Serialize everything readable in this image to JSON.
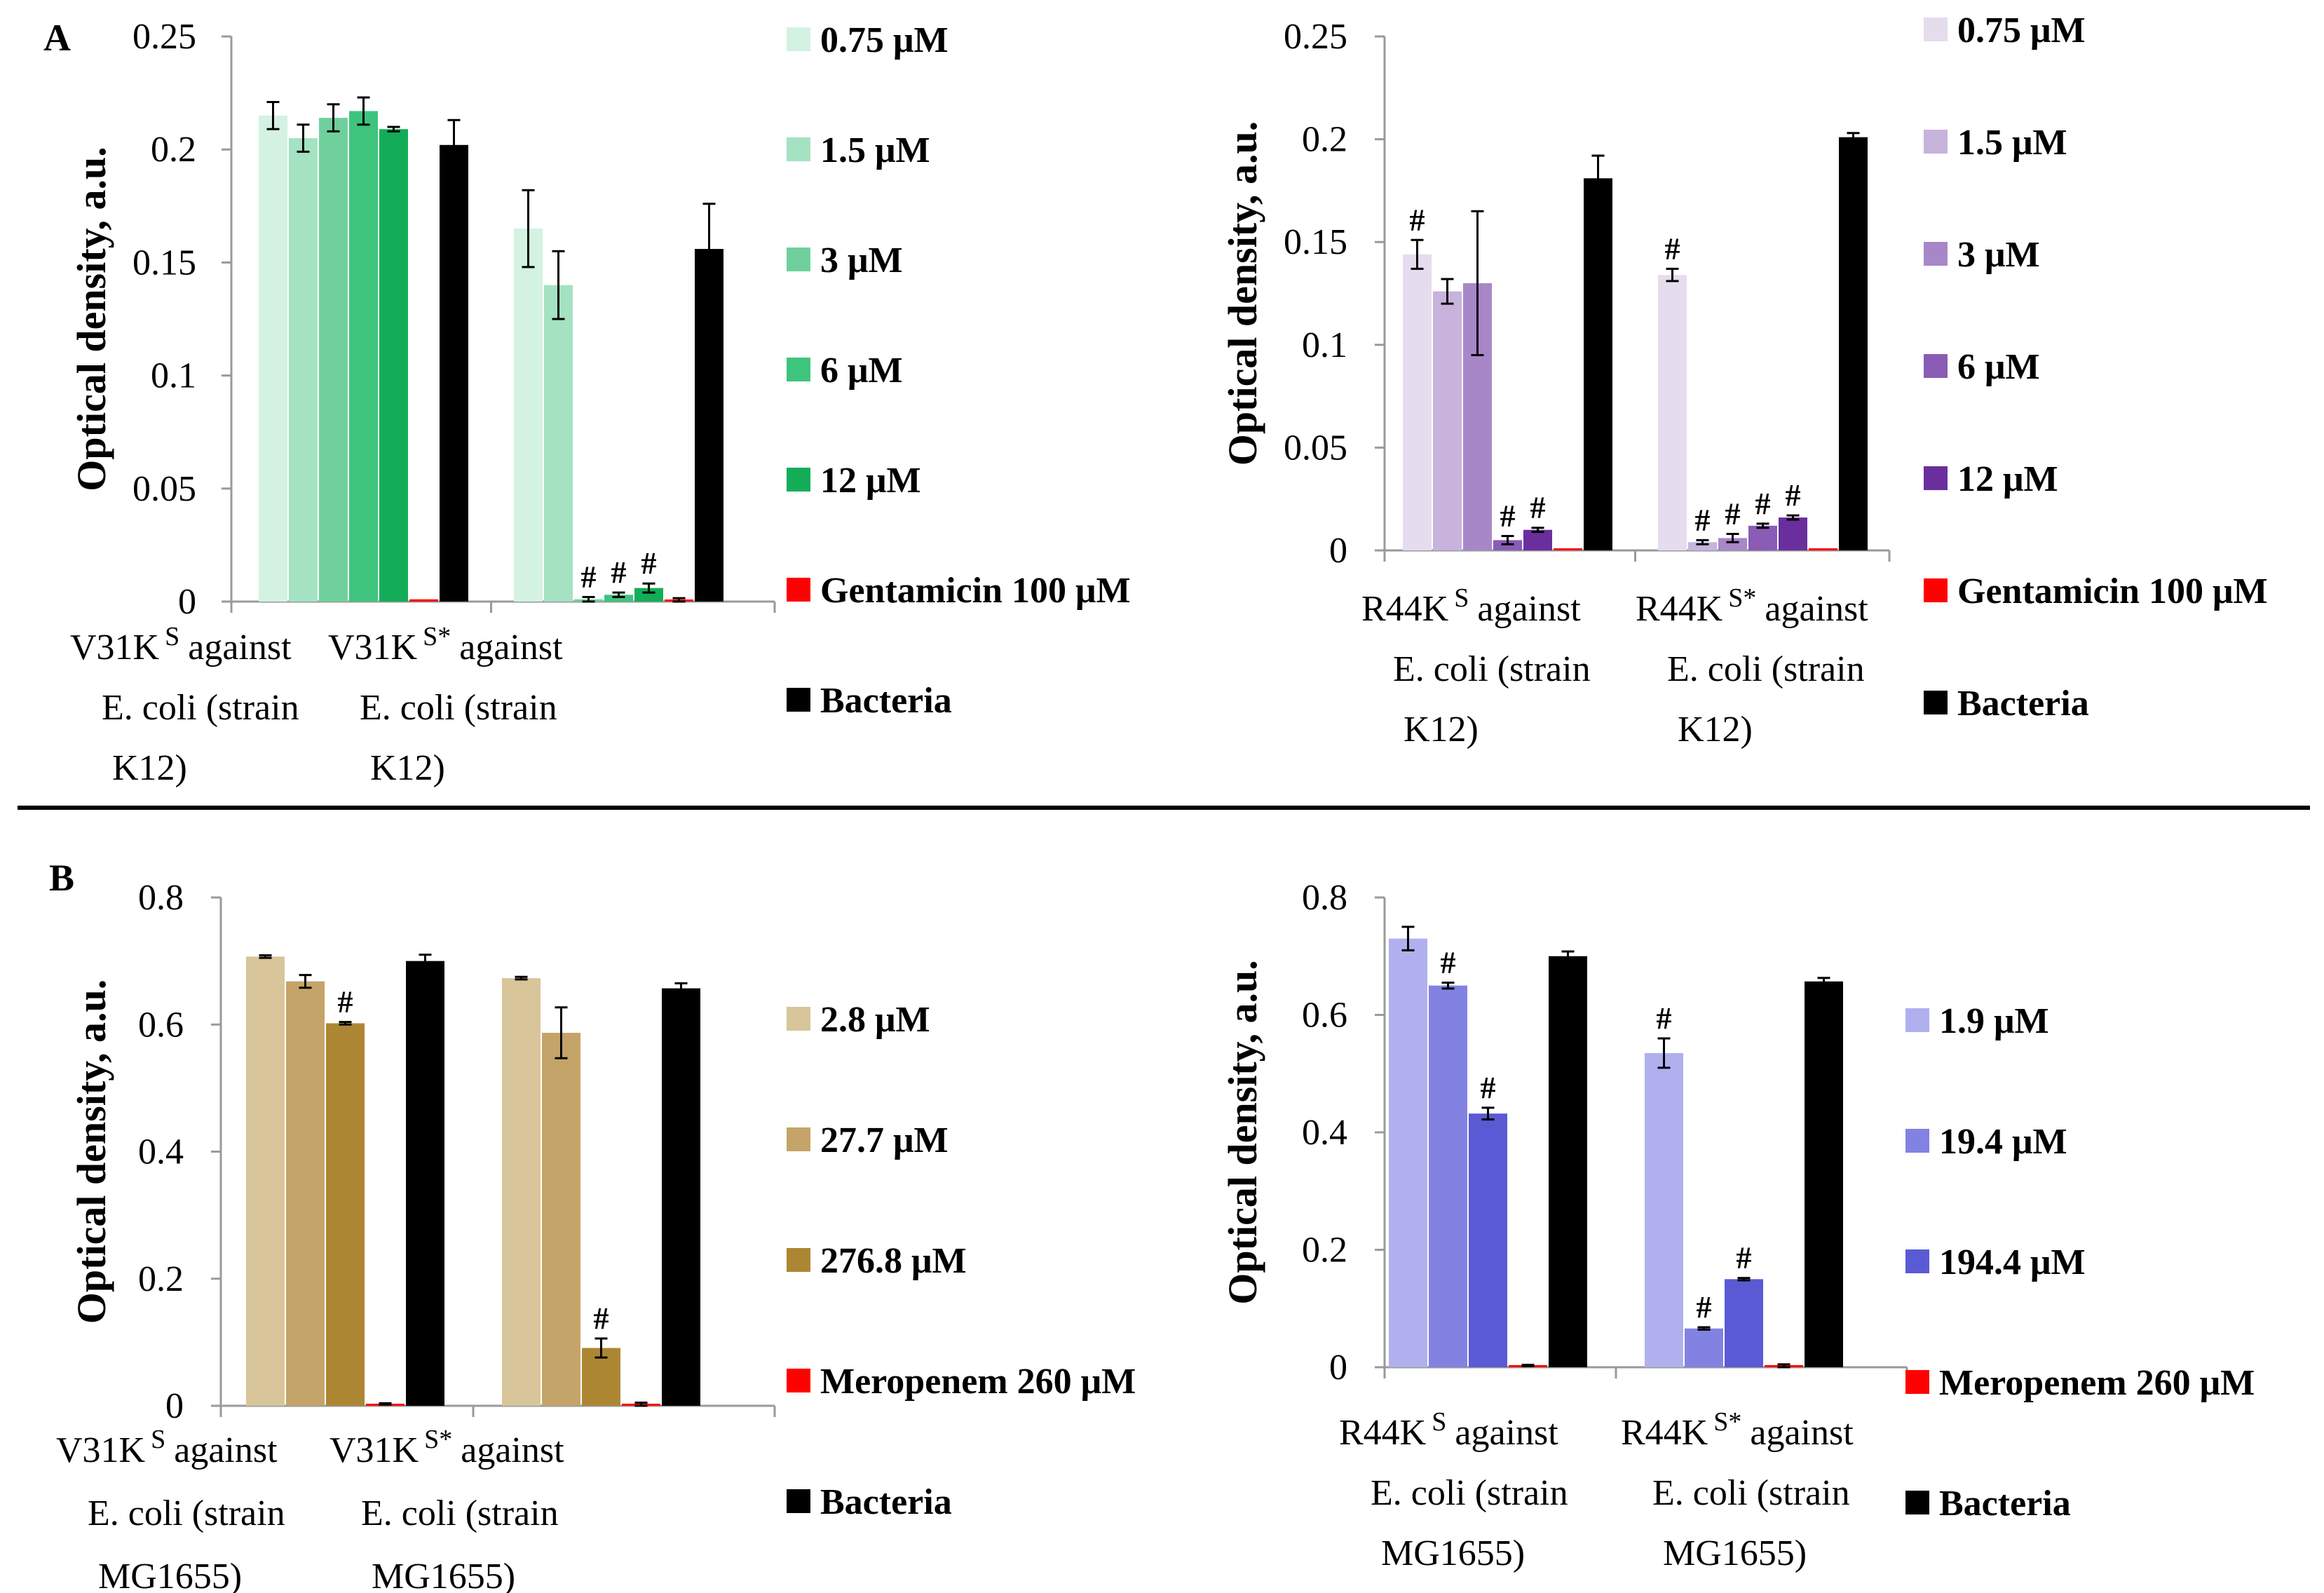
{
  "figure": {
    "panel_labels": [
      "A",
      "B"
    ],
    "hash_mark": "#"
  },
  "chart_data": [
    {
      "id": "A-left",
      "type": "bar",
      "ylabel": "Optical density, a.u.",
      "ylim": [
        0,
        0.25
      ],
      "yticks": [
        "0",
        "0.05",
        "0.1",
        "0.15",
        "0.2",
        "0.25"
      ],
      "groups": [
        {
          "label_lines": [
            "V31K^S against",
            "E. coli (strain",
            "K12)"
          ]
        },
        {
          "label_lines": [
            "V31K^S* against",
            "E. coli (strain",
            "K12)"
          ]
        }
      ],
      "series": [
        {
          "name": "0.75 μM",
          "color": "#d3f2e1",
          "values": [
            0.215,
            0.165
          ],
          "errors": [
            0.006,
            0.017
          ],
          "sig": [
            false,
            false
          ]
        },
        {
          "name": "1.5 μM",
          "color": "#a4e2c1",
          "values": [
            0.205,
            0.14
          ],
          "errors": [
            0.006,
            0.015
          ],
          "sig": [
            false,
            false
          ]
        },
        {
          "name": "3 μM",
          "color": "#6fd09d",
          "values": [
            0.214,
            0.001
          ],
          "errors": [
            0.006,
            0.001
          ],
          "sig": [
            false,
            true
          ]
        },
        {
          "name": "6 μM",
          "color": "#3ec47d",
          "values": [
            0.217,
            0.003
          ],
          "errors": [
            0.006,
            0.001
          ],
          "sig": [
            false,
            true
          ]
        },
        {
          "name": "12 μM",
          "color": "#14ad57",
          "values": [
            0.209,
            0.006
          ],
          "errors": [
            0.001,
            0.002
          ],
          "sig": [
            false,
            true
          ]
        },
        {
          "name": "Gentamicin 100 μM",
          "color": "#ff0000",
          "values": [
            0.001,
            0.0005
          ],
          "errors": [
            0,
            0.001
          ],
          "sig": [
            false,
            false
          ]
        },
        {
          "name": "Bacteria",
          "color": "#000000",
          "values": [
            0.202,
            0.156
          ],
          "errors": [
            0.011,
            0.02
          ],
          "sig": [
            false,
            false
          ]
        }
      ]
    },
    {
      "id": "A-right",
      "type": "bar",
      "ylabel": "Optical density, a.u.",
      "ylim": [
        0,
        0.25
      ],
      "yticks": [
        "0",
        "0.05",
        "0.1",
        "0.15",
        "0.2",
        "0.25"
      ],
      "groups": [
        {
          "label_lines": [
            "R44K^S against",
            "E. coli (strain",
            "K12)"
          ]
        },
        {
          "label_lines": [
            "R44K^S* against",
            "E. coli (strain",
            "K12)"
          ]
        }
      ],
      "series": [
        {
          "name": "0.75 μM",
          "color": "#e5dcee",
          "values": [
            0.144,
            0.134
          ],
          "errors": [
            0.007,
            0.003
          ],
          "sig": [
            true,
            true
          ]
        },
        {
          "name": "1.5 μM",
          "color": "#c7b3dc",
          "values": [
            0.126,
            0.004
          ],
          "errors": [
            0.006,
            0.001
          ],
          "sig": [
            false,
            true
          ]
        },
        {
          "name": "3 μM",
          "color": "#a887c9",
          "values": [
            0.13,
            0.006
          ],
          "errors": [
            0.035,
            0.002
          ],
          "sig": [
            false,
            true
          ]
        },
        {
          "name": "6 μM",
          "color": "#8a5cb5",
          "values": [
            0.005,
            0.012
          ],
          "errors": [
            0.002,
            0.001
          ],
          "sig": [
            true,
            true
          ]
        },
        {
          "name": "12 μM",
          "color": "#6a2f9c",
          "values": [
            0.01,
            0.016
          ],
          "errors": [
            0.001,
            0.001
          ],
          "sig": [
            true,
            true
          ]
        },
        {
          "name": "Gentamicin 100 μM",
          "color": "#ff0000",
          "values": [
            0.0005,
            0.0005
          ],
          "errors": [
            0,
            0
          ],
          "sig": [
            false,
            false
          ]
        },
        {
          "name": "Bacteria",
          "color": "#000000",
          "values": [
            0.181,
            0.201
          ],
          "errors": [
            0.011,
            0.002
          ],
          "sig": [
            false,
            false
          ]
        }
      ]
    },
    {
      "id": "B-left",
      "type": "bar",
      "ylabel": "Optical density, a.u.",
      "ylim": [
        0,
        0.8
      ],
      "yticks": [
        "0",
        "0.2",
        "0.4",
        "0.6",
        "0.8"
      ],
      "groups": [
        {
          "label_lines": [
            "V31K^S against",
            "E. coli (strain",
            "MG1655)"
          ]
        },
        {
          "label_lines": [
            "V31K^S* against",
            "E. coli (strain",
            "MG1655)"
          ]
        }
      ],
      "series": [
        {
          "name": "2.8 μM",
          "color": "#d8c59a",
          "values": [
            0.707,
            0.673
          ],
          "errors": [
            0.002,
            0.002
          ],
          "sig": [
            false,
            false
          ]
        },
        {
          "name": "27.7 μM",
          "color": "#c4a468",
          "values": [
            0.668,
            0.587
          ],
          "errors": [
            0.01,
            0.04
          ],
          "sig": [
            false,
            false
          ]
        },
        {
          "name": "276.8 μM",
          "color": "#ad8634",
          "values": [
            0.602,
            0.091
          ],
          "errors": [
            0.002,
            0.015
          ],
          "sig": [
            true,
            true
          ]
        },
        {
          "name": "Meropenem 260 μM",
          "color": "#ff0000",
          "values": [
            0.003,
            0.002
          ],
          "errors": [
            0.001,
            0.003
          ],
          "sig": [
            false,
            false
          ]
        },
        {
          "name": "Bacteria",
          "color": "#000000",
          "values": [
            0.7,
            0.657
          ],
          "errors": [
            0.01,
            0.008
          ],
          "sig": [
            false,
            false
          ]
        }
      ]
    },
    {
      "id": "B-right",
      "type": "bar",
      "ylabel": "Optical density, a.u.",
      "ylim": [
        0,
        0.8
      ],
      "yticks": [
        "0",
        "0.2",
        "0.4",
        "0.6",
        "0.8"
      ],
      "groups": [
        {
          "label_lines": [
            "R44K^S against",
            "E. coli (strain",
            "MG1655)"
          ]
        },
        {
          "label_lines": [
            "R44K^S* against",
            "E. coli (strain",
            "MG1655)"
          ]
        }
      ],
      "series": [
        {
          "name": "1.9 μM",
          "color": "#b0b0ee",
          "values": [
            0.73,
            0.535
          ],
          "errors": [
            0.02,
            0.025
          ],
          "sig": [
            false,
            true
          ]
        },
        {
          "name": "19.4 μM",
          "color": "#8282e2",
          "values": [
            0.65,
            0.066
          ],
          "errors": [
            0.005,
            0.002
          ],
          "sig": [
            true,
            true
          ]
        },
        {
          "name": "194.4 μM",
          "color": "#5a5ad5",
          "values": [
            0.432,
            0.15
          ],
          "errors": [
            0.01,
            0.002
          ],
          "sig": [
            true,
            true
          ]
        },
        {
          "name": "Meropenem 260 μM",
          "color": "#ff0000",
          "values": [
            0.003,
            0.002
          ],
          "errors": [
            0.001,
            0.003
          ],
          "sig": [
            false,
            false
          ]
        },
        {
          "name": "Bacteria",
          "color": "#000000",
          "values": [
            0.7,
            0.657
          ],
          "errors": [
            0.008,
            0.006
          ],
          "sig": [
            false,
            false
          ]
        }
      ]
    }
  ]
}
